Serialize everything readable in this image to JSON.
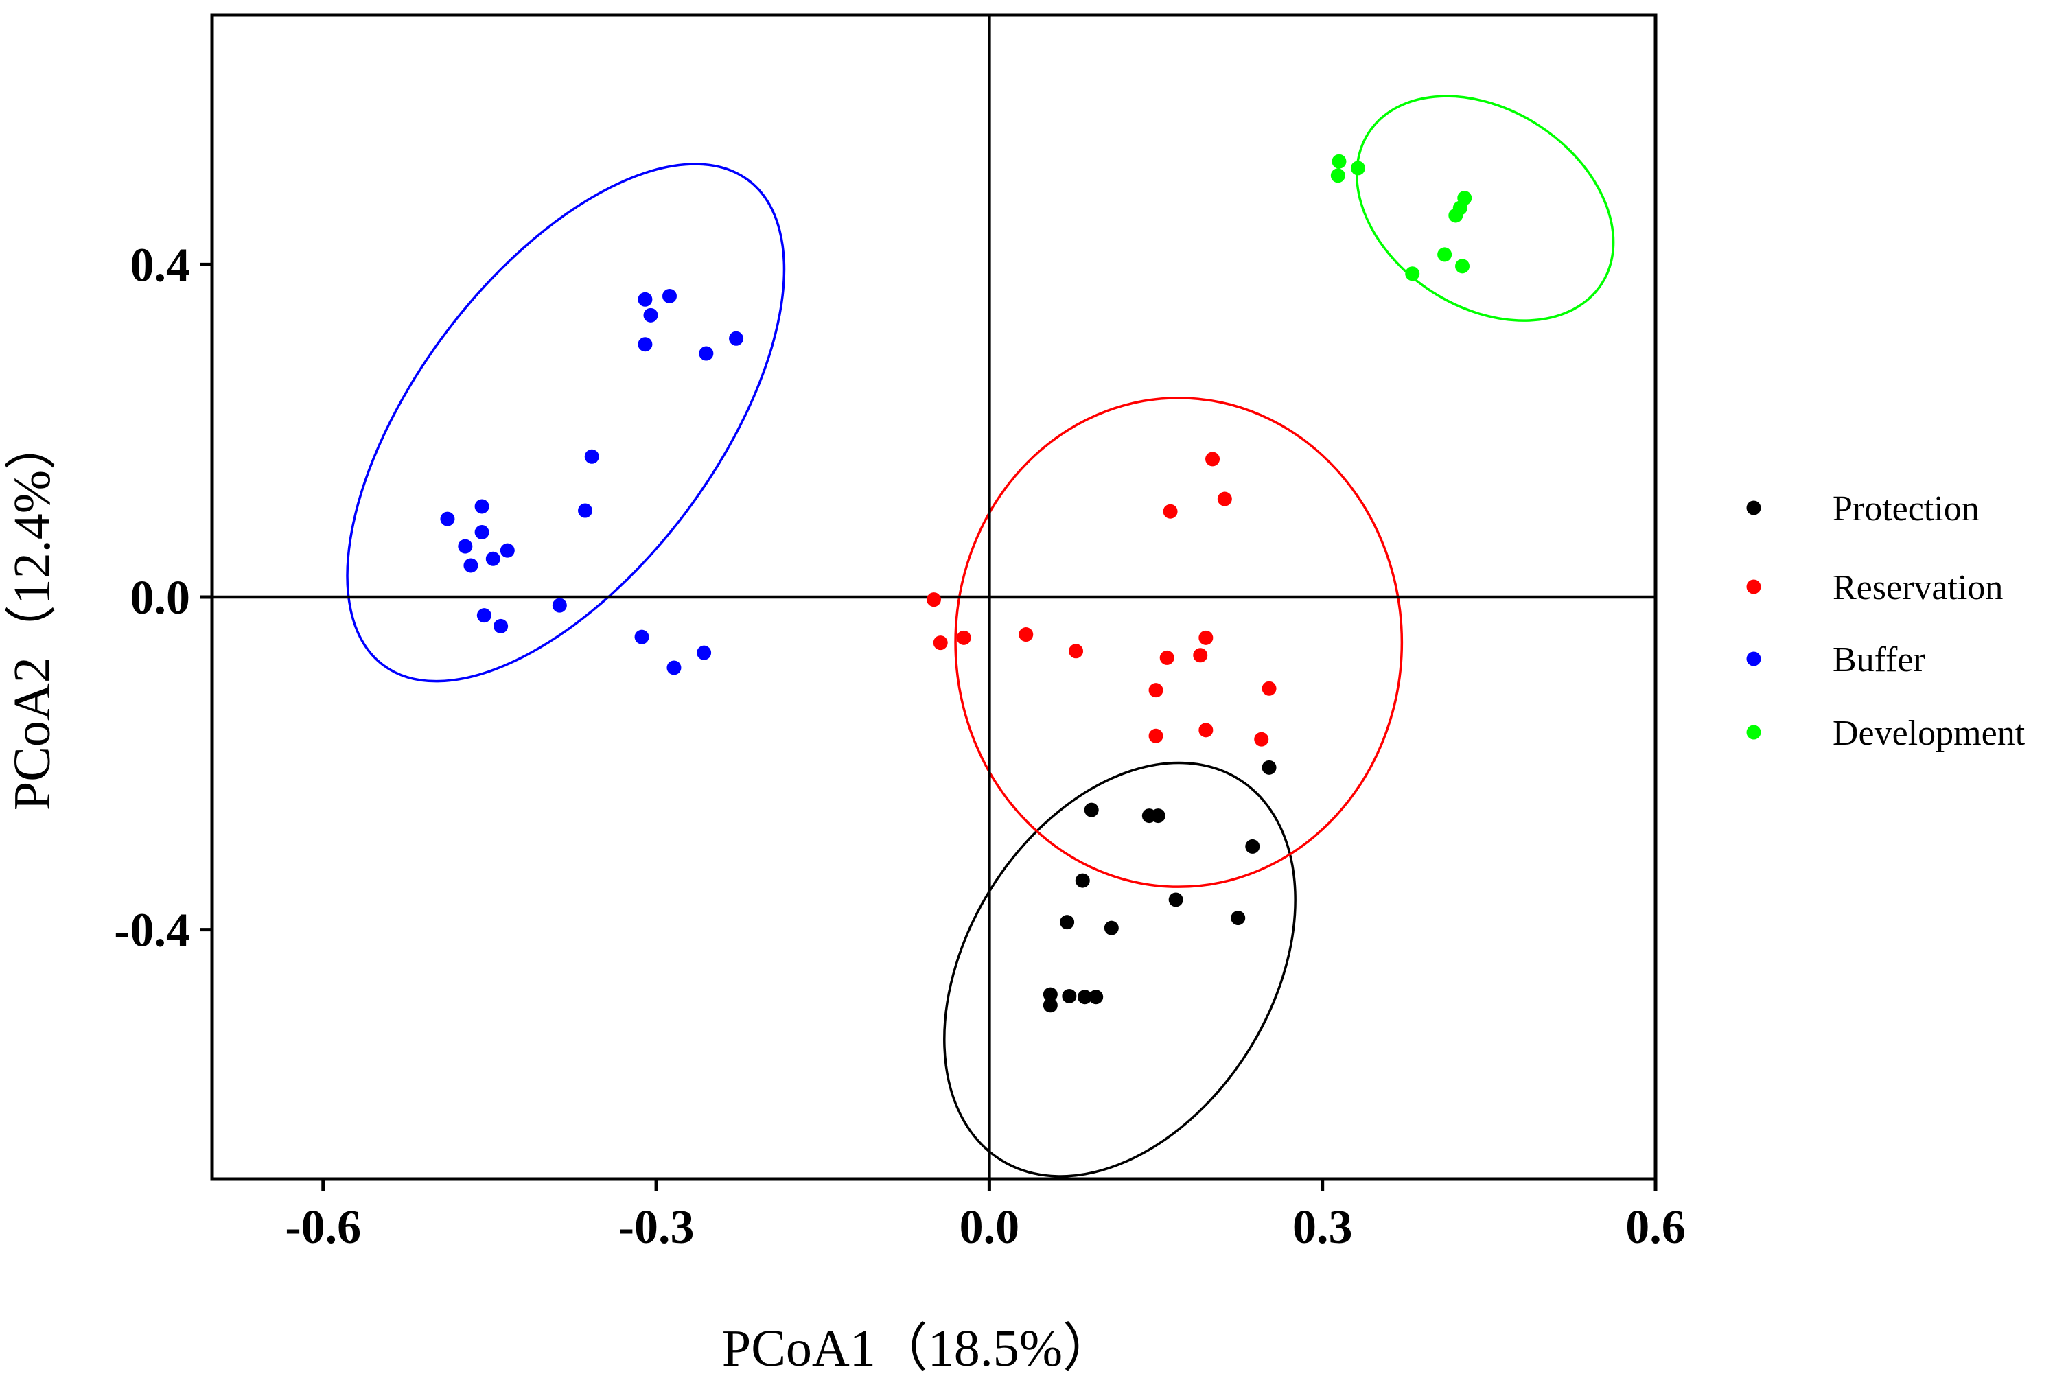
{
  "chart_data": {
    "type": "scatter",
    "xlabel": "PCoA1（18.5%）",
    "ylabel": "PCoA2（12.4%）",
    "xlim": [
      -0.7,
      0.6
    ],
    "ylim": [
      -0.7,
      0.7
    ],
    "xticks": [
      -0.6,
      -0.3,
      0.0,
      0.3,
      0.6
    ],
    "xtick_labels": [
      "-0.6",
      "-0.3",
      "0.0",
      "0.3",
      "0.6"
    ],
    "yticks": [
      0.4,
      0.0,
      -0.4
    ],
    "ytick_labels": [
      "0.4",
      "0.0",
      "-0.4"
    ],
    "grid": false,
    "zero_lines": true,
    "legend_position": "right",
    "series": [
      {
        "name": "Protection",
        "color": "#000000",
        "points": [
          [
            0.252,
            -0.205
          ],
          [
            0.092,
            -0.256
          ],
          [
            0.144,
            -0.263
          ],
          [
            0.152,
            -0.263
          ],
          [
            0.237,
            -0.3
          ],
          [
            0.084,
            -0.341
          ],
          [
            0.168,
            -0.364
          ],
          [
            0.224,
            -0.386
          ],
          [
            0.07,
            -0.391
          ],
          [
            0.11,
            -0.398
          ],
          [
            0.055,
            -0.478
          ],
          [
            0.072,
            -0.48
          ],
          [
            0.086,
            -0.481
          ],
          [
            0.096,
            -0.481
          ],
          [
            0.055,
            -0.491
          ]
        ],
        "ellipse": {
          "cx": 0.1175,
          "cy": -0.448,
          "rx": 0.137,
          "ry": 0.27,
          "rotation_deg": 32
        }
      },
      {
        "name": "Reservation",
        "color": "#ff0000",
        "points": [
          [
            0.201,
            0.166
          ],
          [
            0.212,
            0.118
          ],
          [
            0.163,
            0.103
          ],
          [
            -0.05,
            -0.003
          ],
          [
            -0.044,
            -0.055
          ],
          [
            -0.023,
            -0.049
          ],
          [
            0.033,
            -0.045
          ],
          [
            0.078,
            -0.065
          ],
          [
            0.16,
            -0.073
          ],
          [
            0.19,
            -0.07
          ],
          [
            0.195,
            -0.049
          ],
          [
            0.252,
            -0.11
          ],
          [
            0.15,
            -0.112
          ],
          [
            0.195,
            -0.16
          ],
          [
            0.245,
            -0.171
          ],
          [
            0.15,
            -0.167
          ]
        ],
        "ellipse": {
          "cx": 0.1705,
          "cy": -0.0545,
          "rx": 0.201,
          "ry": 0.294,
          "rotation_deg": 0
        }
      },
      {
        "name": "Buffer",
        "color": "#0000ff",
        "points": [
          [
            -0.288,
            0.362
          ],
          [
            -0.31,
            0.358
          ],
          [
            -0.305,
            0.339
          ],
          [
            -0.31,
            0.304
          ],
          [
            -0.228,
            0.311
          ],
          [
            -0.255,
            0.293
          ],
          [
            -0.358,
            0.169
          ],
          [
            -0.364,
            0.104
          ],
          [
            -0.457,
            0.109
          ],
          [
            -0.488,
            0.094
          ],
          [
            -0.457,
            0.078
          ],
          [
            -0.472,
            0.061
          ],
          [
            -0.434,
            0.056
          ],
          [
            -0.447,
            0.046
          ],
          [
            -0.467,
            0.038
          ],
          [
            -0.387,
            -0.01
          ],
          [
            -0.455,
            -0.022
          ],
          [
            -0.44,
            -0.035
          ],
          [
            -0.313,
            -0.048
          ],
          [
            -0.257,
            -0.067
          ],
          [
            -0.284,
            -0.085
          ]
        ],
        "ellipse": {
          "cx": -0.3815,
          "cy": 0.2098,
          "rx": 0.135,
          "ry": 0.365,
          "rotation_deg": 37
        }
      },
      {
        "name": "Development",
        "color": "#00ff00",
        "points": [
          [
            0.315,
            0.524
          ],
          [
            0.332,
            0.516
          ],
          [
            0.314,
            0.507
          ],
          [
            0.428,
            0.48
          ],
          [
            0.424,
            0.468
          ],
          [
            0.42,
            0.459
          ],
          [
            0.41,
            0.412
          ],
          [
            0.426,
            0.398
          ],
          [
            0.381,
            0.389
          ]
        ],
        "ellipse": {
          "cx": 0.4465,
          "cy": 0.4675,
          "rx": 0.089,
          "ry": 0.167,
          "rotation_deg": -57
        }
      }
    ]
  }
}
